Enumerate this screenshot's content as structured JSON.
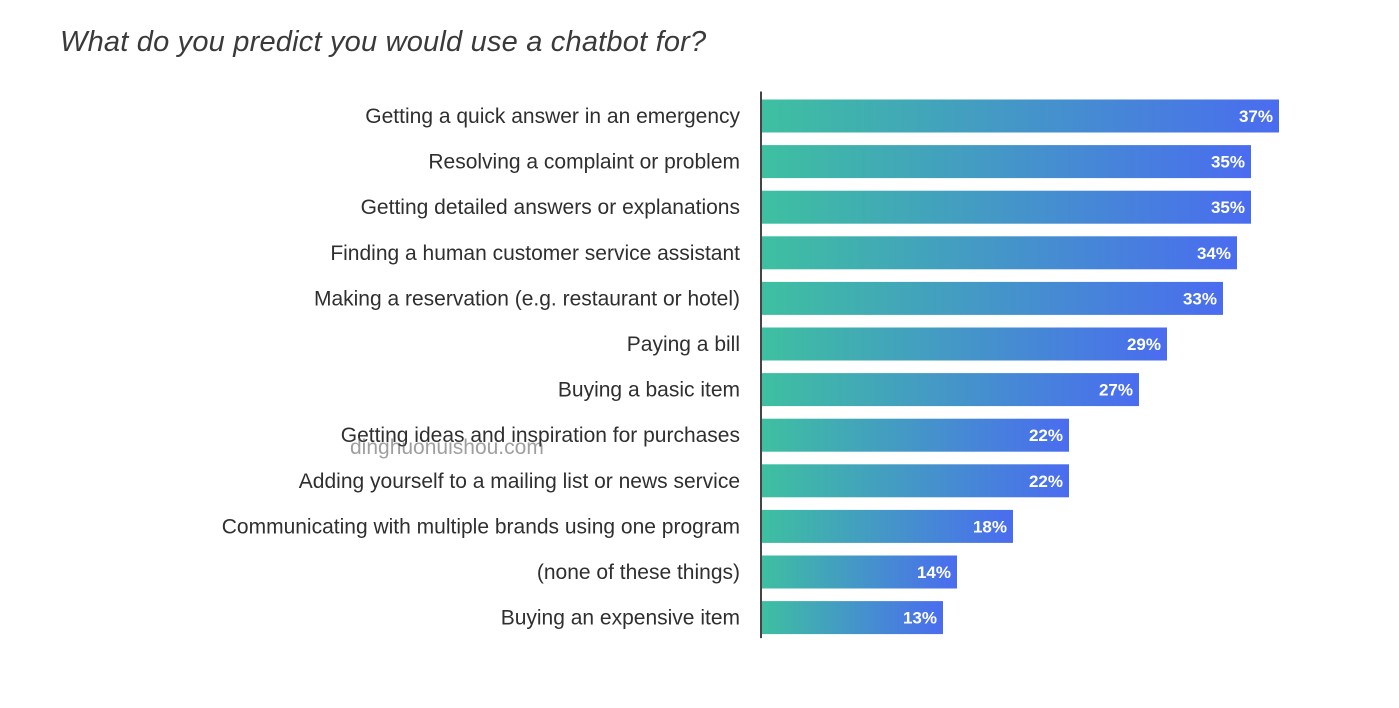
{
  "colors": {
    "bar_gradient_start": "#3ec0a0",
    "bar_gradient_end": "#4a6cf0",
    "axis": "#444444",
    "value_text": "#ffffff"
  },
  "watermark": "dinghuonuishou.com",
  "chart_data": {
    "type": "bar",
    "orientation": "horizontal",
    "title": "What do you predict you would use a chatbot for?",
    "xlabel": "",
    "ylabel": "",
    "xlim": [
      0,
      40
    ],
    "grid": false,
    "legend": "none",
    "value_format": "percent",
    "categories": [
      "Getting a quick answer in an emergency",
      "Resolving a complaint or problem",
      "Getting detailed answers or explanations",
      "Finding a human customer service assistant",
      "Making a reservation (e.g. restaurant or hotel)",
      "Paying a bill",
      "Buying a basic item",
      "Getting ideas and inspiration for purchases",
      "Adding yourself to a mailing list or news service",
      "Communicating with multiple brands using one program",
      "(none of these things)",
      "Buying an expensive item"
    ],
    "values": [
      37,
      35,
      35,
      34,
      33,
      29,
      27,
      22,
      22,
      18,
      14,
      13
    ],
    "value_labels": [
      "37%",
      "35%",
      "35%",
      "34%",
      "33%",
      "29%",
      "27%",
      "22%",
      "22%",
      "18%",
      "14%",
      "13%"
    ]
  }
}
